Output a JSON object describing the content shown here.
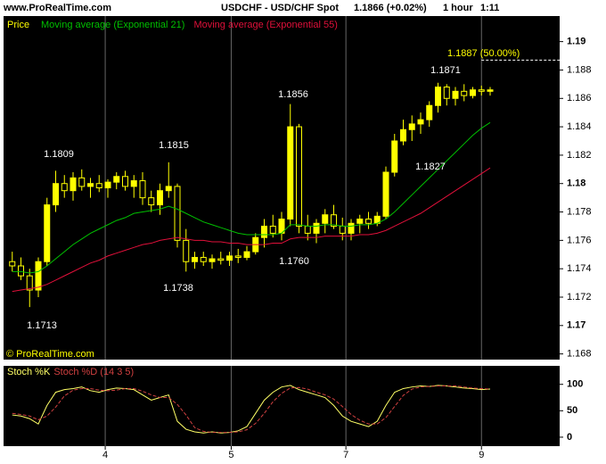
{
  "header": {
    "site": "www.ProRealTime.com",
    "symbol": "USDCHF - USD/CHF Spot",
    "price": "1.1866 (+0.02%)",
    "timeframe": "1 hour",
    "time": "1:11",
    "copyright": "© ProRealTime.com"
  },
  "chart_data": [
    {
      "type": "candlestick",
      "name": "Price",
      "color": "#ffff00",
      "open": [
        1.1745,
        1.1742,
        1.1735,
        1.1725,
        1.1745,
        1.1785,
        1.18,
        1.1795,
        1.1804,
        1.1798,
        1.18,
        1.1797,
        1.1801,
        1.1805,
        1.1798,
        1.1802,
        1.179,
        1.1785,
        1.1795,
        1.1798,
        1.176,
        1.1745,
        1.1748,
        1.1745,
        1.1747,
        1.1746,
        1.1749,
        1.1748,
        1.1752,
        1.1762,
        1.177,
        1.1765,
        1.1775,
        1.184,
        1.177,
        1.1765,
        1.1772,
        1.1778,
        1.177,
        1.1765,
        1.1772,
        1.1775,
        1.1772,
        1.1777,
        1.1808,
        1.183,
        1.1838,
        1.1842,
        1.1845,
        1.1855,
        1.1868,
        1.186,
        1.1865,
        1.1862,
        1.1866,
        1.1865
      ],
      "high": [
        1.1752,
        1.1748,
        1.174,
        1.1748,
        1.179,
        1.1809,
        1.1806,
        1.1808,
        1.181,
        1.1804,
        1.1806,
        1.1803,
        1.1808,
        1.1809,
        1.1806,
        1.1808,
        1.1795,
        1.18,
        1.1815,
        1.18,
        1.1768,
        1.1752,
        1.1752,
        1.175,
        1.1752,
        1.1752,
        1.1754,
        1.1756,
        1.1765,
        1.1775,
        1.1778,
        1.178,
        1.1856,
        1.1842,
        1.1778,
        1.1775,
        1.1782,
        1.1785,
        1.1776,
        1.1775,
        1.1778,
        1.178,
        1.178,
        1.1812,
        1.1835,
        1.1845,
        1.1848,
        1.185,
        1.1858,
        1.1871,
        1.187,
        1.1868,
        1.187,
        1.1868,
        1.1869,
        1.1868
      ],
      "low": [
        1.1738,
        1.1732,
        1.1713,
        1.172,
        1.1742,
        1.178,
        1.179,
        1.1788,
        1.1795,
        1.179,
        1.1794,
        1.179,
        1.1796,
        1.1795,
        1.179,
        1.1785,
        1.178,
        1.1778,
        1.179,
        1.1755,
        1.1738,
        1.174,
        1.1742,
        1.174,
        1.1743,
        1.1742,
        1.1744,
        1.1746,
        1.175,
        1.1755,
        1.1762,
        1.176,
        1.177,
        1.1765,
        1.176,
        1.1758,
        1.1765,
        1.1768,
        1.176,
        1.176,
        1.1765,
        1.1768,
        1.177,
        1.1775,
        1.1805,
        1.1827,
        1.183,
        1.1835,
        1.184,
        1.185,
        1.1855,
        1.1855,
        1.1858,
        1.186,
        1.1862,
        1.1862
      ],
      "close": [
        1.1742,
        1.1735,
        1.1725,
        1.1745,
        1.1785,
        1.18,
        1.1795,
        1.1804,
        1.1798,
        1.18,
        1.1797,
        1.1801,
        1.1805,
        1.1798,
        1.1802,
        1.179,
        1.1785,
        1.1795,
        1.1798,
        1.176,
        1.1745,
        1.1748,
        1.1745,
        1.1747,
        1.1746,
        1.1749,
        1.1748,
        1.1752,
        1.1762,
        1.177,
        1.1765,
        1.1775,
        1.184,
        1.177,
        1.1765,
        1.1772,
        1.1778,
        1.177,
        1.1765,
        1.1772,
        1.1775,
        1.1772,
        1.1777,
        1.1808,
        1.183,
        1.1838,
        1.1842,
        1.1845,
        1.1855,
        1.1868,
        1.186,
        1.1865,
        1.1862,
        1.1866,
        1.1865,
        1.1866
      ],
      "series": [
        {
          "name": "Moving average (Exponential 21)",
          "color": "#00c000",
          "values": [
            1.1738,
            1.1738,
            1.1737,
            1.1738,
            1.1742,
            1.1747,
            1.1752,
            1.1757,
            1.1761,
            1.1765,
            1.1768,
            1.1771,
            1.1774,
            1.1776,
            1.1779,
            1.178,
            1.1781,
            1.1782,
            1.1784,
            1.1782,
            1.1779,
            1.1776,
            1.1773,
            1.1771,
            1.1769,
            1.1767,
            1.1765,
            1.1764,
            1.1764,
            1.1764,
            1.1764,
            1.1765,
            1.1771,
            1.1771,
            1.177,
            1.177,
            1.1771,
            1.1771,
            1.177,
            1.177,
            1.1771,
            1.1771,
            1.1772,
            1.1775,
            1.178,
            1.1786,
            1.1792,
            1.1798,
            1.1804,
            1.181,
            1.1816,
            1.1822,
            1.1828,
            1.1834,
            1.1839,
            1.1843
          ]
        },
        {
          "name": "Moving average (Exponential 55)",
          "color": "#e0103a",
          "values": [
            1.1724,
            1.1725,
            1.1726,
            1.1727,
            1.1729,
            1.1732,
            1.1735,
            1.1738,
            1.1741,
            1.1744,
            1.1746,
            1.1749,
            1.1751,
            1.1753,
            1.1755,
            1.1757,
            1.1758,
            1.176,
            1.1761,
            1.1762,
            1.1761,
            1.176,
            1.176,
            1.1759,
            1.1759,
            1.1758,
            1.1758,
            1.1757,
            1.1757,
            1.1757,
            1.1758,
            1.1758,
            1.1761,
            1.1762,
            1.1762,
            1.1762,
            1.1763,
            1.1763,
            1.1763,
            1.1763,
            1.1764,
            1.1764,
            1.1765,
            1.1767,
            1.177,
            1.1773,
            1.1776,
            1.1779,
            1.1783,
            1.1787,
            1.1791,
            1.1795,
            1.1799,
            1.1803,
            1.1807,
            1.1811
          ]
        }
      ],
      "reference_line": {
        "value": 1.1887,
        "label": "1.1887 (50.00%)"
      },
      "annotations": [
        "1.1809",
        "1.1815",
        "1.1856",
        "1.1871",
        "1.1827",
        "1.1760",
        "1.1738",
        "1.1713"
      ],
      "xlim": [
        -1,
        63
      ],
      "ylim": [
        1.1676,
        1.1918
      ],
      "yticks": [
        1.19,
        1.188,
        1.186,
        1.184,
        1.182,
        1.18,
        1.178,
        1.176,
        1.174,
        1.172,
        1.17,
        1.168
      ]
    },
    {
      "type": "line",
      "title": "Stoch %K",
      "subtitle": "Stoch %D (14 3 5)",
      "series": [
        {
          "name": "Stoch %K",
          "color": "#ffff66",
          "values": [
            42,
            40,
            35,
            25,
            60,
            85,
            90,
            92,
            95,
            88,
            85,
            90,
            93,
            92,
            90,
            80,
            70,
            75,
            80,
            30,
            15,
            10,
            8,
            10,
            8,
            9,
            12,
            20,
            45,
            70,
            85,
            95,
            98,
            90,
            85,
            80,
            75,
            60,
            40,
            30,
            25,
            20,
            30,
            60,
            85,
            92,
            95,
            97,
            96,
            98,
            97,
            95,
            93,
            92,
            90,
            91
          ]
        },
        {
          "name": "Stoch %D (14 3 5)",
          "color": "#d04040",
          "values": [
            45,
            43,
            40,
            33,
            40,
            57,
            78,
            89,
            92,
            92,
            89,
            88,
            89,
            92,
            92,
            87,
            80,
            75,
            75,
            62,
            42,
            18,
            11,
            9,
            9,
            9,
            10,
            14,
            26,
            45,
            67,
            83,
            93,
            94,
            91,
            85,
            80,
            72,
            58,
            43,
            32,
            25,
            25,
            37,
            58,
            79,
            91,
            95,
            96,
            97,
            97,
            97,
            95,
            93,
            92,
            91
          ]
        }
      ],
      "xlim": [
        -1,
        63
      ],
      "ylim": [
        -17,
        135
      ],
      "yticks": [
        100,
        50,
        0
      ],
      "xticks": [
        {
          "value": 10.7,
          "label": "4"
        },
        {
          "value": 25.2,
          "label": "5"
        },
        {
          "value": 38.4,
          "label": "7"
        },
        {
          "value": 54,
          "label": "9"
        }
      ]
    }
  ]
}
